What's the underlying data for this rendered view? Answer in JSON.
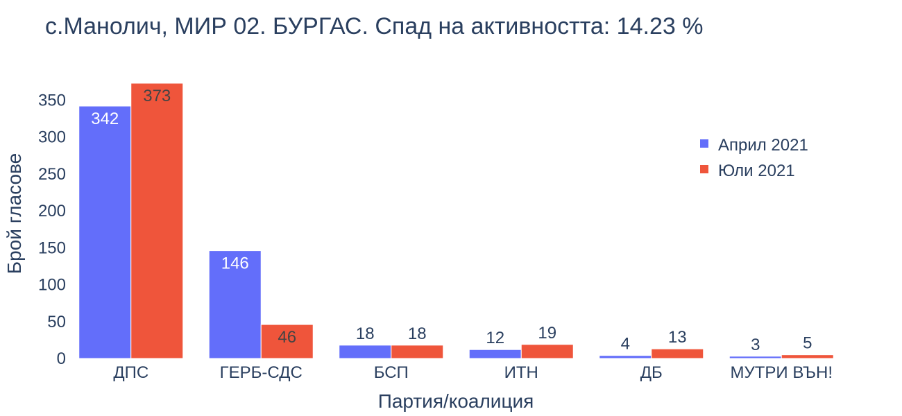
{
  "chart_data": {
    "type": "bar",
    "title": "с.Манолич, МИР 02. БУРГАС. Спад на активността: 14.23 %",
    "xlabel": "Партия/коалиция",
    "ylabel": "Брой гласове",
    "categories": [
      "ДПС",
      "ГЕРБ-СДС",
      "БСП",
      "ИТН",
      "ДБ",
      "МУТРИ ВЪН!"
    ],
    "series": [
      {
        "name": "Април 2021",
        "color": "#636efa",
        "values": [
          342,
          146,
          18,
          12,
          4,
          3
        ]
      },
      {
        "name": "Юли 2021",
        "color": "#ef553b",
        "values": [
          373,
          46,
          18,
          19,
          13,
          5
        ]
      }
    ],
    "ylim": [
      0,
      373
    ],
    "yticks": [
      0,
      50,
      100,
      150,
      200,
      250,
      300,
      350
    ],
    "grid": false,
    "legend": "top-right"
  }
}
